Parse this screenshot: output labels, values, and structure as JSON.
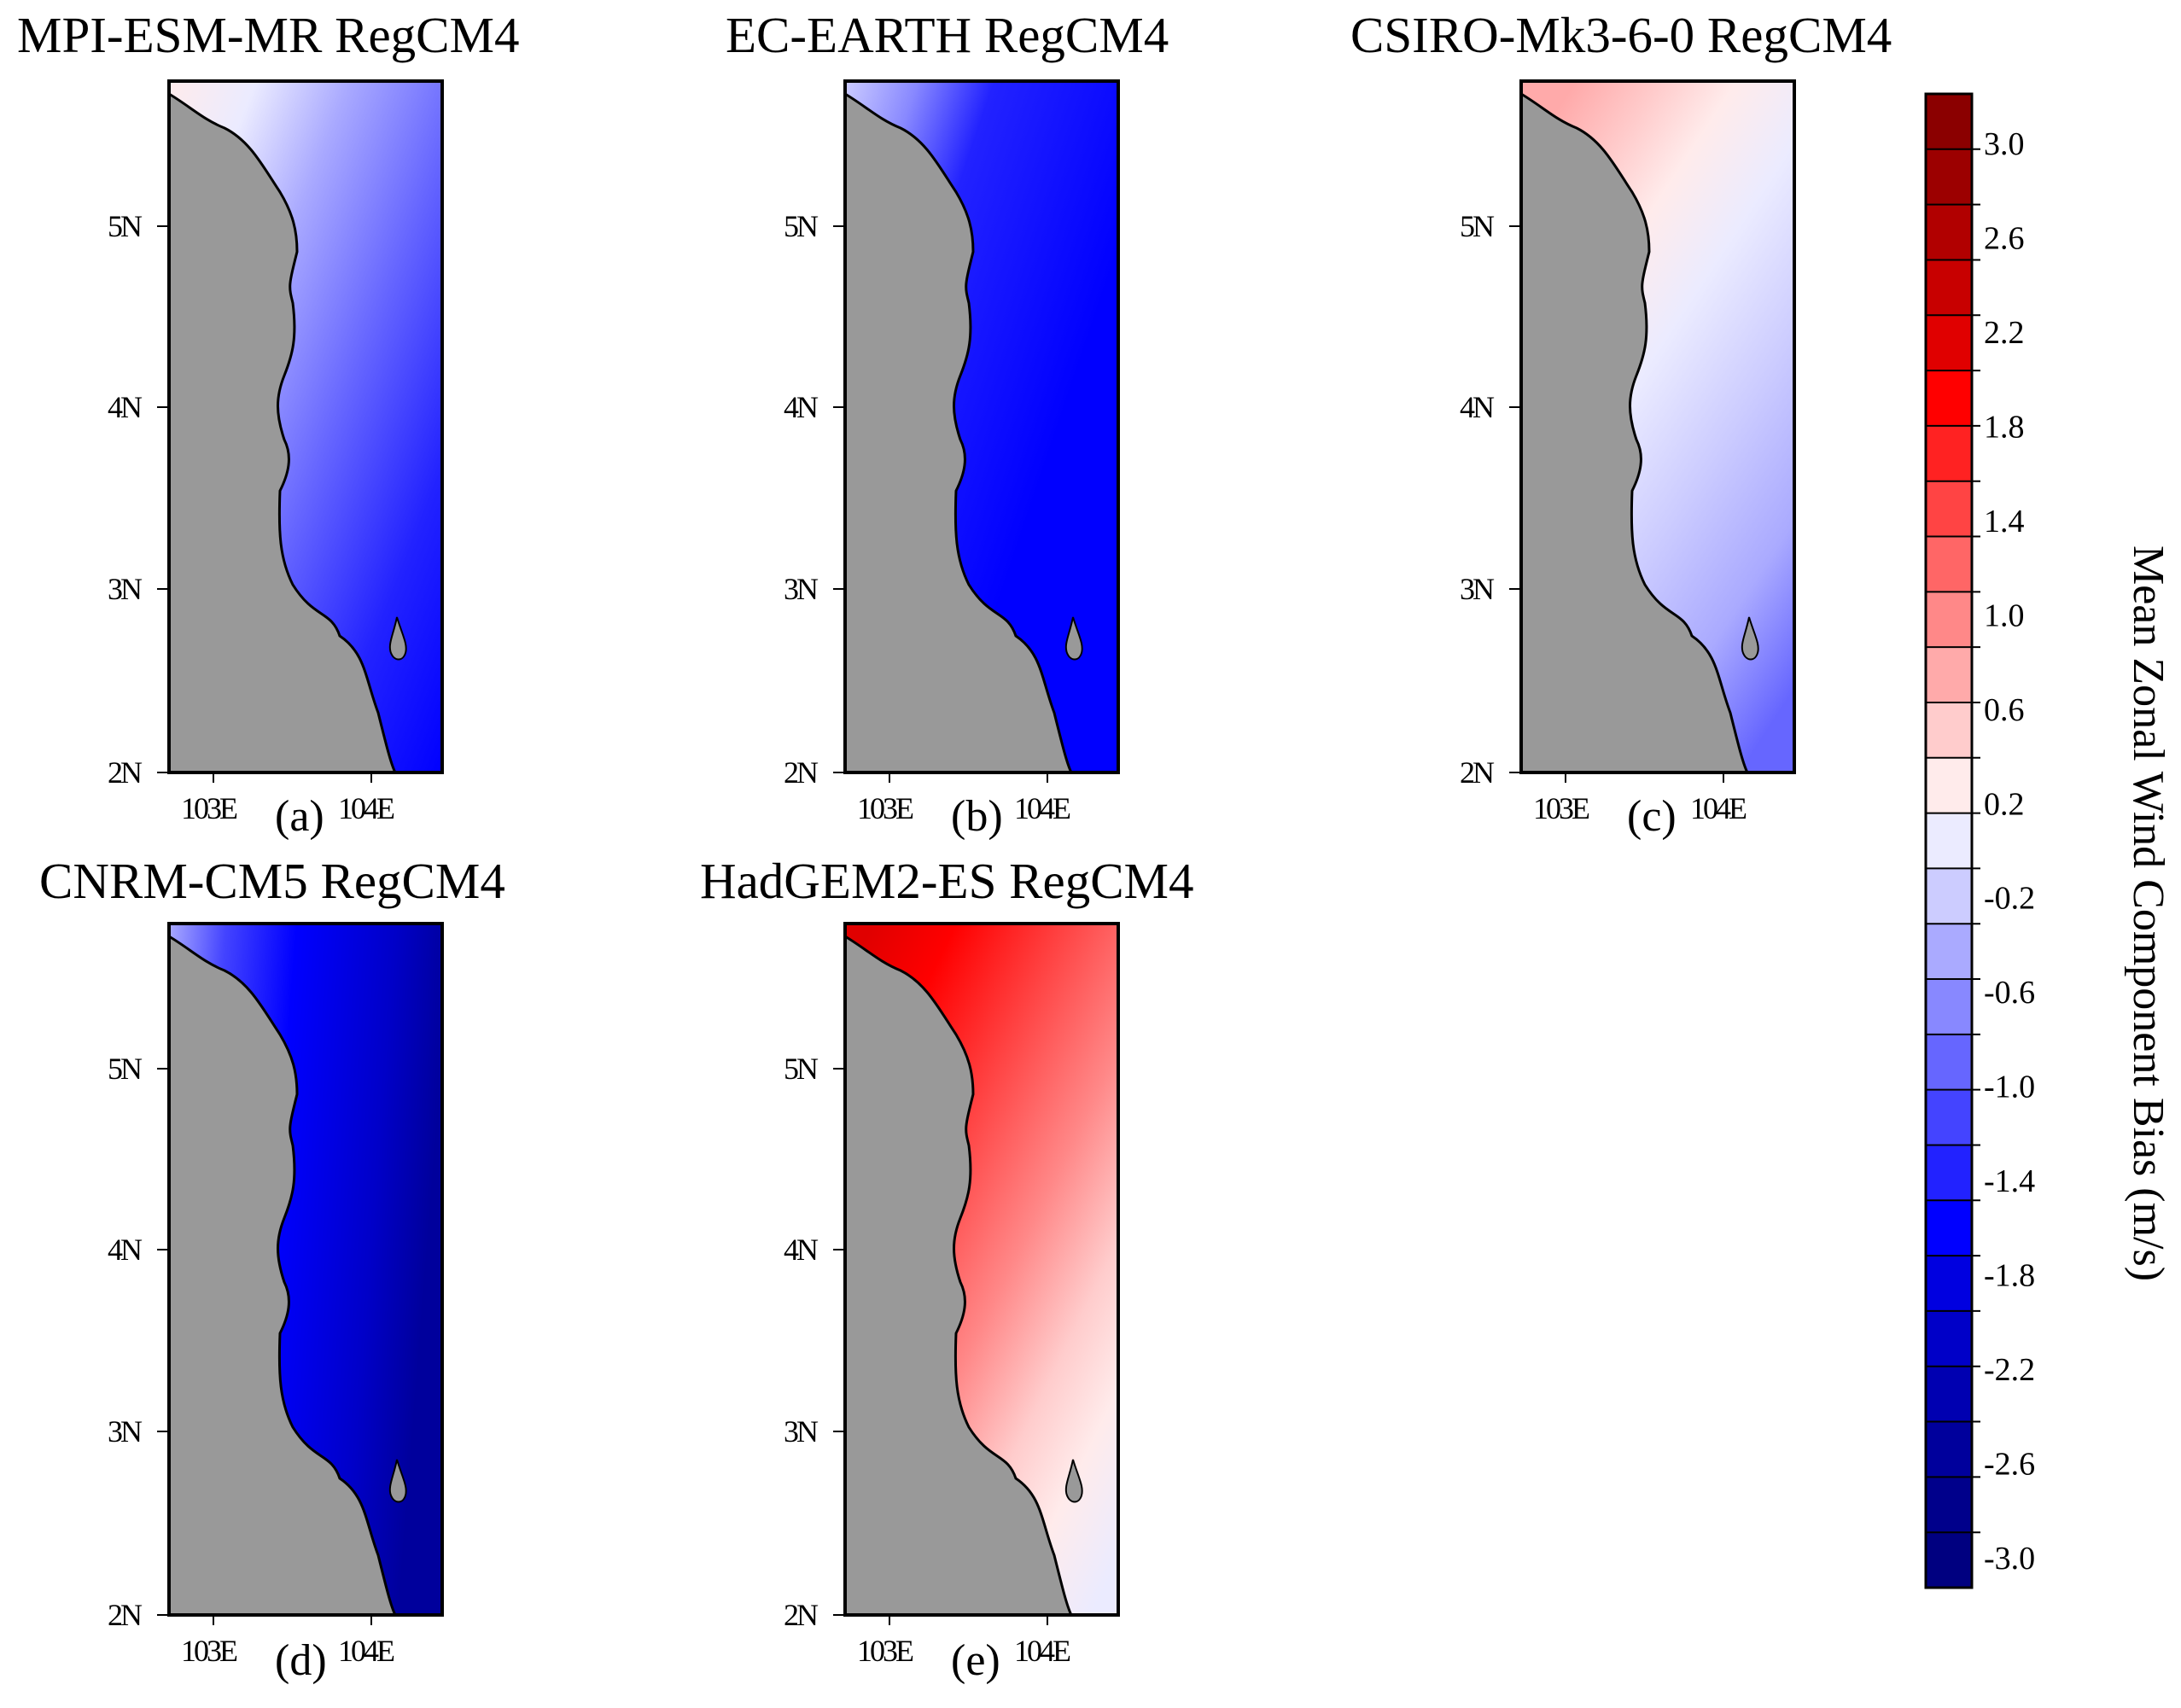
{
  "figure": {
    "colorbar": {
      "title": "Mean Zonal Wind Component Bias (m/s)",
      "unit": "m/s",
      "labels": [
        "3.0",
        "2.6",
        "2.2",
        "1.8",
        "1.4",
        "1.0",
        "0.6",
        "0.2",
        "-0.2",
        "-0.6",
        "-1.0",
        "-1.4",
        "-1.8",
        "-2.2",
        "-2.6",
        "-3.0"
      ],
      "colors": [
        "#8b0000",
        "#9c0000",
        "#b10000",
        "#c80000",
        "#e00000",
        "#ff0000",
        "#ff2222",
        "#ff4444",
        "#ff6666",
        "#ff8888",
        "#ffaaaa",
        "#ffcccc",
        "#ffebeb",
        "#ebebff",
        "#ccccff",
        "#aaaaff",
        "#8888ff",
        "#6666ff",
        "#4444ff",
        "#2222ff",
        "#0000ff",
        "#0000e0",
        "#0000c8",
        "#0000b1",
        "#00009c",
        "#00008b",
        "#000080"
      ]
    },
    "land_color": "#999999",
    "panels": [
      {
        "title": "MPI-ESM-MR  RegCM4",
        "label": "(a)",
        "pattern": "a",
        "y_ticks": [
          "5N",
          "4N",
          "3N",
          "2N"
        ],
        "x_ticks": [
          "103E",
          "104E"
        ]
      },
      {
        "title": "EC-EARTH  RegCM4",
        "label": "(b)",
        "pattern": "b",
        "y_ticks": [
          "5N",
          "4N",
          "3N",
          "2N"
        ],
        "x_ticks": [
          "103E",
          "104E"
        ]
      },
      {
        "title": "CSIRO-Mk3-6-0  RegCM4",
        "label": "(c)",
        "pattern": "c",
        "y_ticks": [
          "5N",
          "4N",
          "3N",
          "2N"
        ],
        "x_ticks": [
          "103E",
          "104E"
        ]
      },
      {
        "title": "CNRM-CM5   RegCM4",
        "label": "(d)",
        "pattern": "d",
        "y_ticks": [
          "5N",
          "4N",
          "3N",
          "2N"
        ],
        "x_ticks": [
          "103E",
          "104E"
        ]
      },
      {
        "title": "HadGEM2-ES  RegCM4",
        "label": "(e)",
        "pattern": "e",
        "y_ticks": [
          "5N",
          "4N",
          "3N",
          "2N"
        ],
        "x_ticks": [
          "103E",
          "104E"
        ]
      }
    ]
  }
}
